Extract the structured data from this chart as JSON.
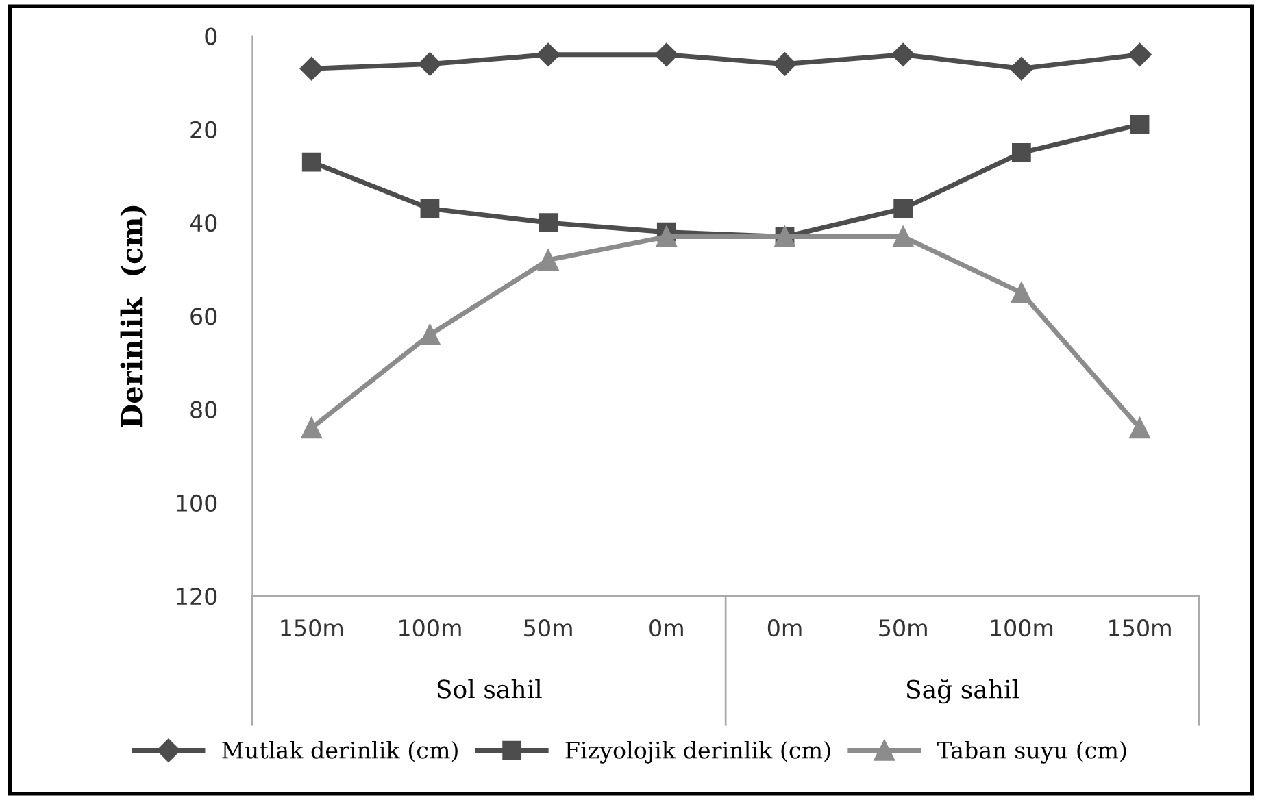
{
  "chart_data": {
    "type": "line",
    "ylabel": "Derinlik  (cm)",
    "categories": [
      "150m",
      "100m",
      "50m",
      "0m",
      "0m",
      "50m",
      "100m",
      "150m"
    ],
    "annotations": [
      "Sol sahil",
      "Sağ sahil"
    ],
    "series": [
      {
        "name": "Mutlak derinlik (cm)",
        "color": "#4d4d4d",
        "marker": "diamond",
        "values": [
          7,
          6,
          4,
          4,
          6,
          4,
          7,
          4
        ]
      },
      {
        "name": "Fizyolojik derinlik (cm)",
        "color": "#4d4d4d",
        "marker": "square",
        "values": [
          27,
          37,
          40,
          42,
          43,
          37,
          25,
          19
        ]
      },
      {
        "name": "Taban suyu (cm)",
        "color": "#8c8c8c",
        "marker": "triangle",
        "values": [
          84,
          64,
          48,
          43,
          43,
          43,
          55,
          84
        ]
      }
    ],
    "ylim": [
      120,
      0
    ],
    "yticks": [
      0,
      20,
      40,
      60,
      80,
      100,
      120
    ],
    "grid": false,
    "legend": "bottom"
  }
}
